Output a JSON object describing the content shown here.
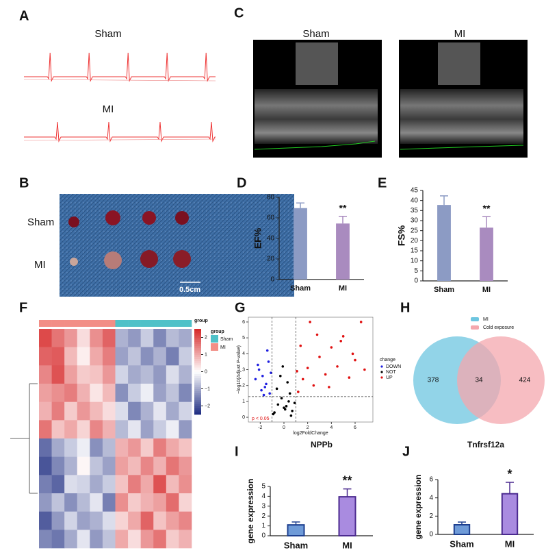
{
  "panels": {
    "letters": [
      "A",
      "B",
      "C",
      "D",
      "E",
      "F",
      "G",
      "H",
      "I",
      "J"
    ],
    "ecg": [
      "Sham",
      "MI"
    ],
    "photo": {
      "rows": [
        "Sham",
        "MI"
      ],
      "scale": "0.5cm"
    },
    "echo": [
      "Sham",
      "MI"
    ]
  },
  "chart_data": [
    {
      "type": "bar",
      "ylabel": "EF%",
      "categories": [
        "Sham",
        "MI"
      ],
      "values": [
        69.5,
        54.5
      ],
      "errors": [
        5,
        7
      ],
      "colors": [
        "#8c9bc4",
        "#a98bbf"
      ],
      "ylim": [
        0,
        80
      ],
      "yticks": [
        0,
        20,
        40,
        60,
        80
      ],
      "annotations": [
        {
          "category": "MI",
          "text": "**"
        }
      ]
    },
    {
      "type": "bar",
      "ylabel": "FS%",
      "categories": [
        "Sham",
        "MI"
      ],
      "values": [
        37.8,
        26.5
      ],
      "errors": [
        4.5,
        5.5
      ],
      "colors": [
        "#8c9bc4",
        "#a98bbf"
      ],
      "ylim": [
        0,
        45
      ],
      "yticks": [
        0,
        5,
        10,
        15,
        20,
        25,
        30,
        35,
        40,
        45
      ],
      "annotations": [
        {
          "category": "MI",
          "text": "**"
        }
      ]
    },
    {
      "type": "scatter",
      "xlabel": "log2FoldChange",
      "ylabel": "−log10(Adjust P-value)",
      "legend_title": "change",
      "xlim": [
        -3,
        7.5
      ],
      "xticks": [
        -2,
        0,
        2,
        4,
        6
      ],
      "ylim": [
        -0.3,
        6.3
      ],
      "yticks": [
        0,
        1,
        2,
        3,
        4,
        5,
        6
      ],
      "thresholds": {
        "x": [
          -1,
          1
        ],
        "y": 1.3
      },
      "annotation": "p < 0.05",
      "series": [
        {
          "name": "DOWN",
          "color": "#1f1fe0",
          "x": [
            -1.2,
            -1.5,
            -1.8,
            -2.1,
            -1.3,
            -1.6,
            -2.4,
            -1.1,
            -1.9,
            -1.4,
            -2.2,
            -1.7
          ],
          "values": [
            1.5,
            2.1,
            2.6,
            3.0,
            3.5,
            1.9,
            2.4,
            2.8,
            1.7,
            4.2,
            3.3,
            1.4
          ]
        },
        {
          "name": "NOT",
          "color": "#000000",
          "x": [
            -0.8,
            -0.5,
            -0.2,
            0.1,
            0.4,
            0.7,
            -0.6,
            0.3,
            0.9,
            -0.9,
            0,
            0.5,
            -0.3,
            0.6,
            -0.1,
            0.2
          ],
          "values": [
            0.3,
            0.8,
            1.2,
            0.5,
            1.0,
            0.4,
            1.8,
            2.2,
            0.9,
            0.2,
            0.6,
            1.5,
            2.6,
            0.1,
            3.2,
            0.7
          ]
        },
        {
          "name": "UP",
          "color": "#e01010",
          "x": [
            1.2,
            1.6,
            2.0,
            2.5,
            3.0,
            3.5,
            4.0,
            4.5,
            5.0,
            5.5,
            6.0,
            6.5,
            1.4,
            2.8,
            3.8,
            5.8,
            6.8,
            2.2,
            1.1,
            4.8
          ],
          "values": [
            1.6,
            2.4,
            3.1,
            2.0,
            3.8,
            2.7,
            4.4,
            3.2,
            5.1,
            2.5,
            3.6,
            6.0,
            4.5,
            5.2,
            1.9,
            4.0,
            3.0,
            6.0,
            2.9,
            4.8
          ]
        }
      ]
    },
    {
      "type": "venn",
      "categories": [
        "MI",
        "Cold exposure"
      ],
      "values": [
        378,
        424
      ],
      "intersection": 34,
      "colors": [
        "#6ec6e0",
        "#f4a7ad"
      ]
    },
    {
      "type": "bar",
      "title": "NPPb",
      "ylabel": "gene expression",
      "categories": [
        "Sham",
        "MI"
      ],
      "values": [
        1.1,
        3.95
      ],
      "errors": [
        0.3,
        0.8
      ],
      "colors": [
        "#6f9bd8",
        "#a98be0"
      ],
      "edgecolors": [
        "#1d3f8f",
        "#4b2a8f"
      ],
      "ylim": [
        0,
        5
      ],
      "yticks": [
        0,
        1,
        2,
        3,
        4,
        5
      ],
      "annotations": [
        {
          "category": "MI",
          "text": "**"
        }
      ]
    },
    {
      "type": "bar",
      "title": "Tnfrsf12a",
      "ylabel": "gene expression",
      "categories": [
        "Sham",
        "MI"
      ],
      "values": [
        1.05,
        4.45
      ],
      "errors": [
        0.3,
        1.25
      ],
      "colors": [
        "#6f9bd8",
        "#a98be0"
      ],
      "edgecolors": [
        "#1d3f8f",
        "#4b2a8f"
      ],
      "ylim": [
        0,
        6
      ],
      "yticks": [
        0,
        2,
        4,
        6
      ],
      "annotations": [
        {
          "category": "MI",
          "text": "*"
        }
      ]
    },
    {
      "type": "heatmap",
      "legend_title": "group",
      "groups": [
        {
          "name": "Sham",
          "color": "#4fc1c8"
        },
        {
          "name": "MI",
          "color": "#f28e86"
        }
      ],
      "column_groups": [
        "MI",
        "MI",
        "MI",
        "MI",
        "MI",
        "MI",
        "Sham",
        "Sham",
        "Sham",
        "Sham",
        "Sham",
        "Sham"
      ],
      "clim": [
        -2.5,
        2.5
      ],
      "colorbar_ticks": [
        2,
        1,
        0,
        {
          "value": -1,
          "label": "−1"
        },
        {
          "value": -2,
          "label": "−2"
        }
      ],
      "matrix": [
        [
          2.1,
          1.6,
          1.2,
          0.4,
          1.3,
          1.8,
          -0.9,
          -1.2,
          -0.6,
          -1.4,
          -0.8,
          -1.0
        ],
        [
          1.8,
          1.9,
          0.8,
          0.2,
          1.0,
          1.5,
          -1.1,
          -0.7,
          -1.3,
          -0.9,
          -1.5,
          -0.6
        ],
        [
          1.4,
          2.0,
          1.1,
          0.6,
          0.7,
          1.2,
          -0.5,
          -1.0,
          -0.8,
          -1.2,
          -0.4,
          -0.9
        ],
        [
          1.1,
          1.3,
          1.5,
          0.9,
          0.3,
          0.8,
          -1.3,
          -0.6,
          -0.2,
          -1.1,
          -0.7,
          -1.4
        ],
        [
          0.9,
          1.5,
          0.6,
          1.2,
          0.8,
          0.4,
          -0.4,
          -1.4,
          -0.9,
          -0.3,
          -1.0,
          -0.5
        ],
        [
          1.6,
          0.7,
          1.0,
          0.5,
          1.4,
          0.9,
          -0.8,
          -0.3,
          -1.1,
          -0.6,
          -0.2,
          -1.2
        ],
        [
          -1.7,
          -1.0,
          -0.6,
          -0.2,
          -1.3,
          -0.8,
          0.9,
          1.2,
          0.6,
          1.5,
          1.0,
          0.7
        ],
        [
          -2.0,
          -1.4,
          -0.9,
          0.1,
          -0.7,
          -1.1,
          1.1,
          0.8,
          1.4,
          0.9,
          1.6,
          1.2
        ],
        [
          -1.5,
          -1.8,
          -0.4,
          -0.5,
          -1.0,
          -0.6,
          0.7,
          1.5,
          1.0,
          2.0,
          0.8,
          1.3
        ],
        [
          -1.2,
          -0.7,
          -1.3,
          -0.8,
          -0.3,
          -1.5,
          1.3,
          0.6,
          0.9,
          1.1,
          1.7,
          0.5
        ],
        [
          -1.9,
          -1.2,
          -0.5,
          -1.1,
          -0.9,
          -0.4,
          0.5,
          1.0,
          1.8,
          0.7,
          1.1,
          1.4
        ],
        [
          -1.4,
          -1.6,
          -1.0,
          -0.3,
          -1.2,
          -0.7,
          1.0,
          0.4,
          1.2,
          1.6,
          0.6,
          0.9
        ]
      ]
    }
  ]
}
